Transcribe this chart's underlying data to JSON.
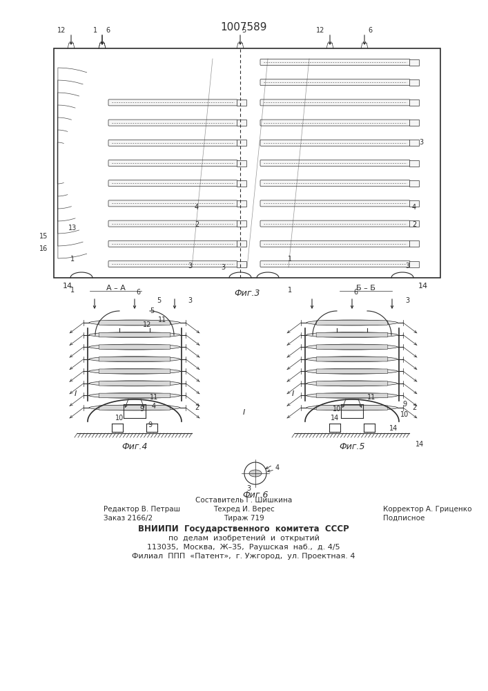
{
  "patent_number": "1007589",
  "background_color": "#ffffff",
  "line_color": "#2a2a2a",
  "fig3_caption": "Фиг.3",
  "fig4_caption": "Фиг.4",
  "fig5_caption": "Фиг.5",
  "fig6_caption": "Фиг.6",
  "section_AA": "A – A",
  "section_BB": "Б – Б",
  "footer_line1": "ВНИИПИ  Государственного  комитета  СССР",
  "footer_line2": "по  делам  изобретений  и  открытий",
  "footer_line3": "113035,  Москва,  Ж–35,  Раушская  наб.,  д. 4/5",
  "footer_line4": "Филиал  ППП  «Патент»,  г. Ужгород,  ул. Проектная. 4",
  "editor_label": "Редактор В. Петраш",
  "order_label": "Заказ 2166/2",
  "composer_label": "Составитель Г. Шишкина",
  "techred_label": "Техред И. Верес",
  "tirazh_label": "Тираж 719",
  "corrector_label": "Корректор А. Гриценко",
  "podpisnoe_label": "Подписное"
}
